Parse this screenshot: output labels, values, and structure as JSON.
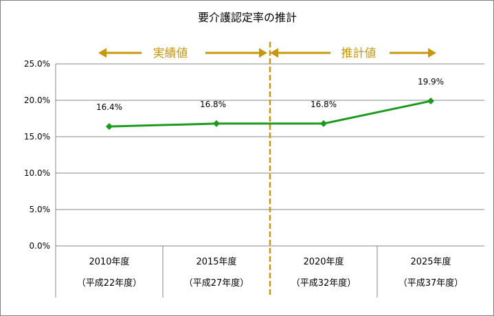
{
  "chart_data": {
    "type": "line",
    "title": "要介護認定率の推計",
    "categories": [
      "2010年度",
      "2015年度",
      "2020年度",
      "2025年度"
    ],
    "category_sublabels": [
      "（平成22年度）",
      "（平成27年度）",
      "（平成32年度）",
      "（平成37年度）"
    ],
    "series": [
      {
        "values": [
          16.4,
          16.8,
          16.8,
          19.9
        ],
        "color": "#1a9a1a"
      }
    ],
    "data_labels": [
      "16.4%",
      "16.8%",
      "16.8%",
      "19.9%"
    ],
    "yticks": [
      "0.0%",
      "5.0%",
      "10.0%",
      "15.0%",
      "20.0%",
      "25.0%"
    ],
    "ylim": [
      0,
      25
    ],
    "grid": true,
    "annotations": {
      "actual": "実績値",
      "forecast": "推計値",
      "color": "#c8960a"
    },
    "line_style": "solid with diamond markers"
  }
}
